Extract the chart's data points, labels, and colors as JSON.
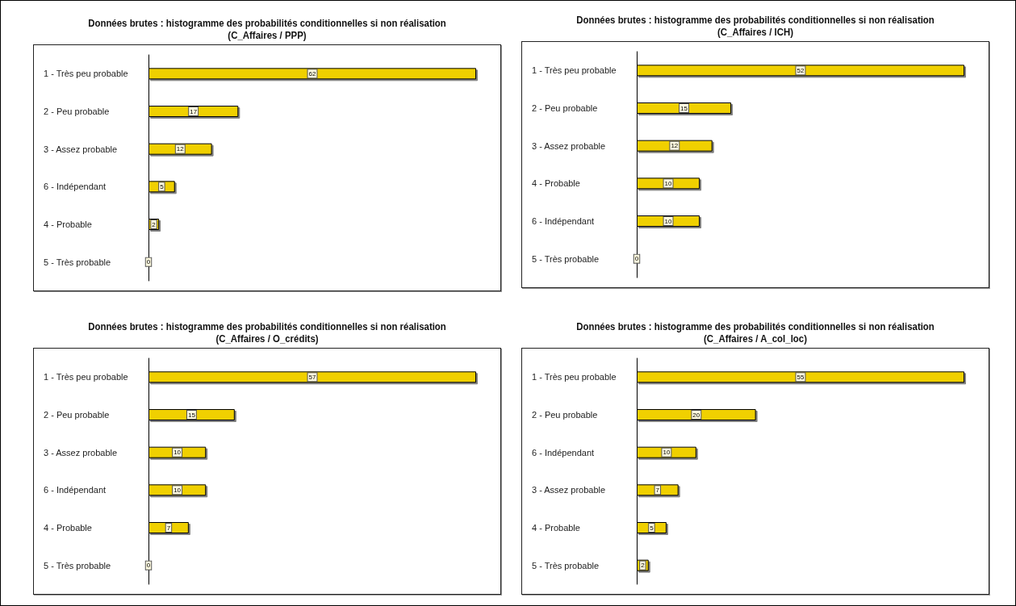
{
  "chart_data": [
    {
      "type": "bar",
      "orientation": "horizontal",
      "title": "Données brutes : histogramme des probabilités conditionnelles si non réalisation",
      "subtitle": "(C_Affaires / PPP)",
      "categories": [
        "1 - Très peu probable",
        "2 - Peu probable",
        "3 - Assez probable",
        "6 - Indépendant",
        "4 - Probable",
        "5 - Très probable"
      ],
      "values": [
        62,
        17,
        12,
        5,
        2,
        0
      ],
      "color": "#f0d000",
      "data_labels": true,
      "grid": false
    },
    {
      "type": "bar",
      "orientation": "horizontal",
      "title": "Données brutes : histogramme des probabilités conditionnelles si non réalisation",
      "subtitle": "(C_Affaires / ICH)",
      "categories": [
        "1 - Très peu probable",
        "2 - Peu probable",
        "3 - Assez probable",
        "4 - Probable",
        "6 - Indépendant",
        "5 - Très probable"
      ],
      "values": [
        52,
        15,
        12,
        10,
        10,
        0
      ],
      "color": "#f0d000",
      "data_labels": true,
      "grid": false
    },
    {
      "type": "bar",
      "orientation": "horizontal",
      "title": "Données brutes : histogramme des probabilités conditionnelles si non réalisation",
      "subtitle": "(C_Affaires / O_crédits)",
      "categories": [
        "1 - Très peu probable",
        "2 - Peu probable",
        "3 - Assez probable",
        "6 - Indépendant",
        "4 - Probable",
        "5 - Très probable"
      ],
      "values": [
        57,
        15,
        10,
        10,
        7,
        0
      ],
      "color": "#f0d000",
      "data_labels": true,
      "grid": false
    },
    {
      "type": "bar",
      "orientation": "horizontal",
      "title": "Données brutes : histogramme des probabilités conditionnelles si non réalisation",
      "subtitle": "(C_Affaires / A_col_loc)",
      "categories": [
        "1 - Très peu probable",
        "2 - Peu probable",
        "6 - Indépendant",
        "3 - Assez probable",
        "4 - Probable",
        "5 - Très probable"
      ],
      "values": [
        55,
        20,
        10,
        7,
        5,
        2
      ],
      "color": "#f0d000",
      "data_labels": true,
      "grid": false
    }
  ]
}
